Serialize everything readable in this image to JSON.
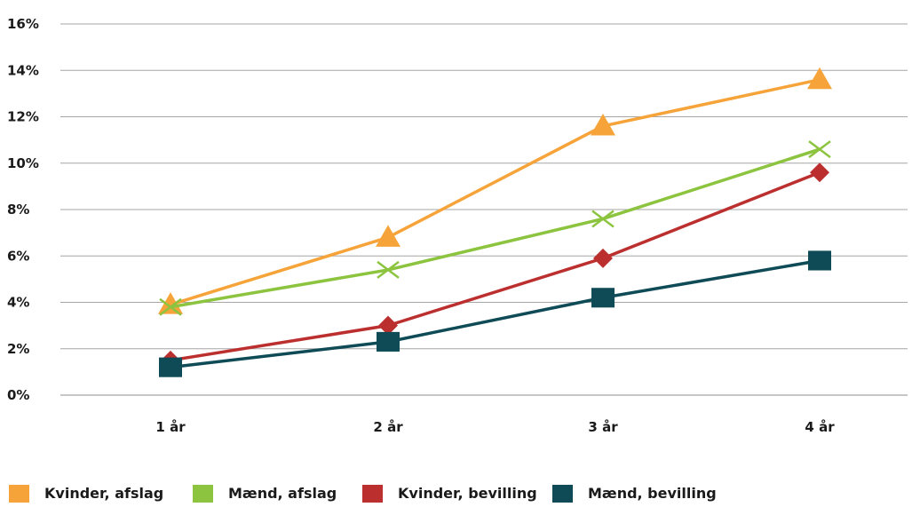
{
  "chart_data": {
    "type": "line",
    "title": "",
    "xlabel": "",
    "ylabel": "",
    "categories": [
      "1 år",
      "2 år",
      "3 år",
      "4 år"
    ],
    "ylim": [
      0,
      16
    ],
    "yticks": [
      "0%",
      "2%",
      "4%",
      "6%",
      "8%",
      "10%",
      "12%",
      "14%",
      "16%"
    ],
    "grid": "horizontal",
    "legend_position": "bottom",
    "series": [
      {
        "name": "Kvinder, afslag",
        "values": [
          3.9,
          6.8,
          11.6,
          13.6
        ],
        "color": "#f6a43a",
        "marker": "triangle"
      },
      {
        "name": "Mænd, afslag",
        "values": [
          3.8,
          5.4,
          7.6,
          10.6
        ],
        "color": "#8cc43f",
        "marker": "x"
      },
      {
        "name": "Kvinder, bevilling",
        "values": [
          1.5,
          3.0,
          5.9,
          9.6
        ],
        "color": "#bc2f2f",
        "marker": "diamond"
      },
      {
        "name": "Mænd, bevilling",
        "values": [
          1.2,
          2.3,
          4.2,
          5.8
        ],
        "color": "#0e4b57",
        "marker": "square"
      }
    ]
  }
}
